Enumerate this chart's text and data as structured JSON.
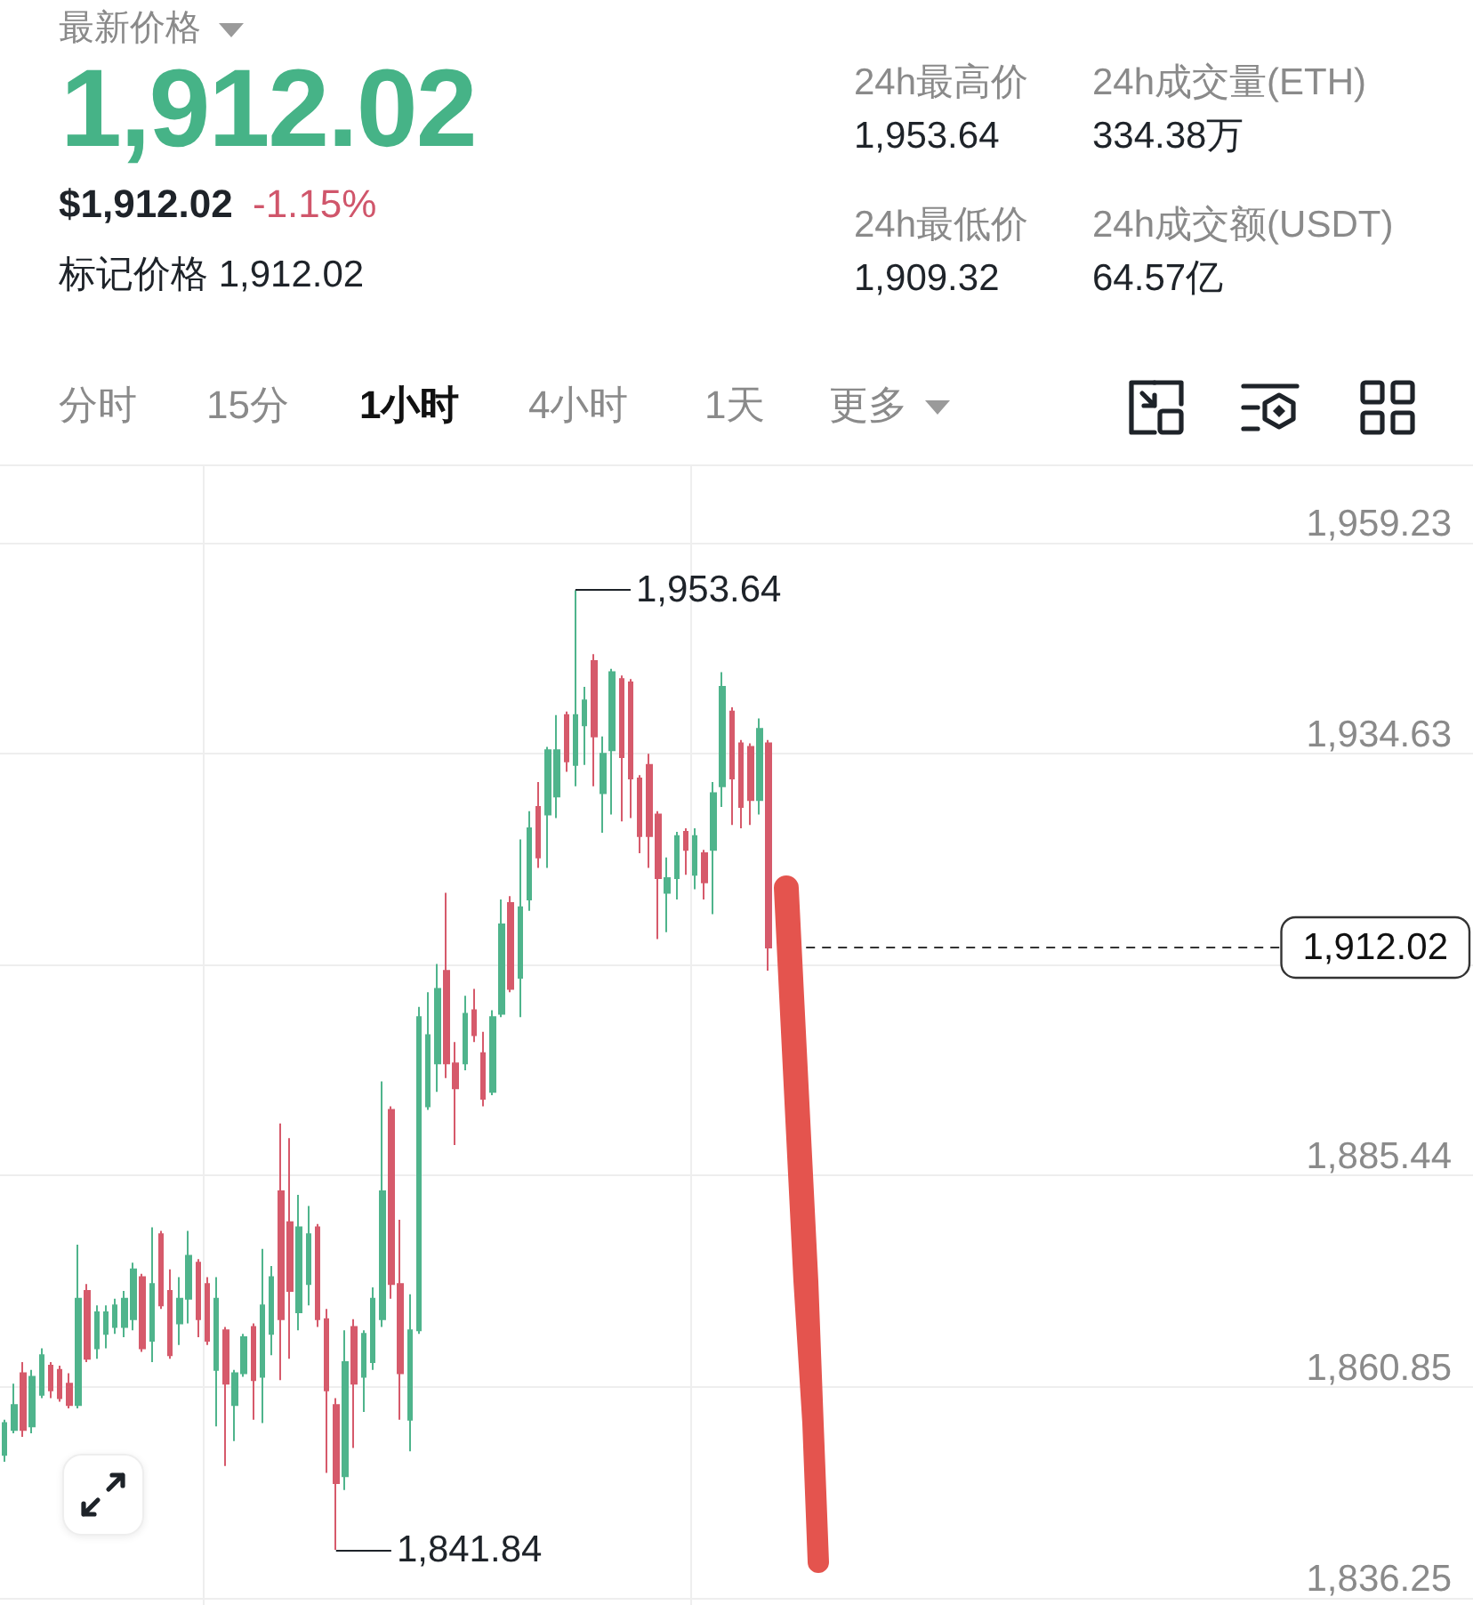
{
  "chart_data": [
    {
      "type": "other",
      "title": "最新价格",
      "annotations": [
        "1,912.02",
        "$1,912.02",
        "-1.15%",
        "标记价格 1,912.02",
        "24h最高价",
        "1,953.64",
        "24h成交量(ETH)",
        "334.38万",
        "24h最低价",
        "1,909.32",
        "24h成交额(USDT)",
        "64.57亿",
        "分时",
        "15分",
        "1小时",
        "4小时",
        "1天",
        "更多"
      ]
    },
    {
      "type": "candlestick",
      "categories": [
        null,
        null,
        null,
        null,
        null,
        null,
        null,
        null,
        null,
        null,
        null,
        null,
        null,
        null,
        null,
        null,
        null,
        null,
        null,
        null,
        null,
        null,
        null,
        null,
        null,
        null,
        null,
        null,
        null,
        null,
        null,
        null,
        null,
        null,
        null,
        null,
        null,
        null,
        null,
        null,
        null,
        null,
        null,
        null,
        null,
        null,
        null,
        null,
        null,
        null,
        null,
        null,
        null,
        null,
        null,
        null,
        null,
        null,
        null,
        null,
        null,
        null,
        null,
        null,
        null,
        null,
        null,
        null,
        null,
        null,
        null,
        null,
        null,
        null,
        null,
        null,
        null,
        null,
        null,
        null,
        null,
        null,
        null,
        null,
        null,
        null,
        null,
        null,
        null,
        null,
        null,
        null,
        null,
        null,
        null,
        null,
        null,
        null,
        null,
        null,
        null,
        null,
        null,
        null,
        null,
        null,
        null,
        null,
        null,
        null,
        null,
        null,
        null,
        null,
        null,
        null,
        null,
        null,
        null,
        null,
        null,
        null,
        null,
        null,
        null,
        null,
        null,
        null,
        null,
        null,
        null,
        null,
        null,
        null,
        null,
        null,
        null,
        null,
        null,
        null,
        null,
        null,
        null,
        null,
        null,
        null,
        null,
        null,
        null,
        null,
        null,
        null,
        null,
        null,
        null,
        null,
        null,
        null,
        null,
        null
      ],
      "ohlc": [
        [
          1852.9,
          1857.0,
          1852.1,
          1856.6
        ],
        [
          1855.8,
          1861.2,
          1855.4,
          1858.7
        ],
        [
          1862.4,
          1863.7,
          1855.0,
          1855.8
        ],
        [
          1856.2,
          1862.8,
          1855.4,
          1862.0
        ],
        [
          1859.9,
          1865.3,
          1859.5,
          1864.5
        ],
        [
          1863.3,
          1863.7,
          1859.5,
          1860.4
        ],
        [
          1862.8,
          1863.3,
          1859.1,
          1859.5
        ],
        [
          1861.2,
          1862.4,
          1858.3,
          1858.7
        ],
        [
          1858.7,
          1877.4,
          1858.3,
          1871.1
        ],
        [
          1872.0,
          1872.8,
          1863.7,
          1864.1
        ],
        [
          1865.3,
          1870.3,
          1864.1,
          1869.5
        ],
        [
          1867.0,
          1870.3,
          1865.3,
          1869.5
        ],
        [
          1867.8,
          1871.1,
          1867.0,
          1870.3
        ],
        [
          1867.8,
          1872.0,
          1866.6,
          1871.1
        ],
        [
          1868.7,
          1875.3,
          1867.4,
          1874.5
        ],
        [
          1873.6,
          1874.0,
          1864.9,
          1865.3
        ],
        [
          1866.2,
          1879.4,
          1863.7,
          1872.8
        ],
        [
          1878.6,
          1879.0,
          1869.9,
          1870.3
        ],
        [
          1872.0,
          1874.5,
          1864.1,
          1864.5
        ],
        [
          1868.2,
          1873.6,
          1865.7,
          1871.1
        ],
        [
          1871.1,
          1879.0,
          1868.2,
          1876.1
        ],
        [
          1875.3,
          1875.7,
          1866.6,
          1868.7
        ],
        [
          1872.8,
          1873.6,
          1865.7,
          1866.2
        ],
        [
          1862.8,
          1873.6,
          1856.2,
          1871.1
        ],
        [
          1867.4,
          1867.8,
          1851.6,
          1861.2
        ],
        [
          1858.7,
          1862.8,
          1854.5,
          1862.4
        ],
        [
          1862.4,
          1867.0,
          1862.0,
          1866.6
        ],
        [
          1867.8,
          1868.2,
          1857.0,
          1861.6
        ],
        [
          1862.0,
          1876.9,
          1856.6,
          1870.3
        ],
        [
          1867.0,
          1874.9,
          1864.5,
          1873.6
        ],
        [
          1883.6,
          1891.5,
          1861.6,
          1868.7
        ],
        [
          1880.0,
          1889.8,
          1864.1,
          1872.0
        ],
        [
          1869.5,
          1883.2,
          1867.4,
          1879.4
        ],
        [
          1872.8,
          1881.9,
          1870.3,
          1878.6
        ],
        [
          1879.4,
          1879.8,
          1867.8,
          1868.7
        ],
        [
          1868.7,
          1869.9,
          1850.8,
          1860.4
        ],
        [
          1858.7,
          1859.5,
          1841.84,
          1849.6
        ],
        [
          1850.4,
          1867.4,
          1848.8,
          1863.7
        ],
        [
          1867.8,
          1868.7,
          1853.7,
          1861.2
        ],
        [
          1862.0,
          1867.4,
          1857.9,
          1867.0
        ],
        [
          1863.7,
          1872.4,
          1862.8,
          1871.1
        ],
        [
          1868.7,
          1896.4,
          1867.8,
          1883.6
        ],
        [
          1893.1,
          1893.5,
          1871.1,
          1872.8
        ],
        [
          1872.8,
          1880.3,
          1857.0,
          1862.4
        ],
        [
          1857.0,
          1871.6,
          1853.3,
          1867.4
        ],
        [
          1867.4,
          1905.1,
          1867.0,
          1903.9
        ],
        [
          1893.5,
          1906.8,
          1893.1,
          1901.8
        ],
        [
          1898.5,
          1910.1,
          1895.2,
          1907.2
        ],
        [
          1909.3,
          1918.4,
          1896.8,
          1898.5
        ],
        [
          1898.5,
          1901.0,
          1889.0,
          1895.6
        ],
        [
          1898.5,
          1906.4,
          1897.7,
          1904.3
        ],
        [
          1904.7,
          1907.2,
          1901.0,
          1901.8
        ],
        [
          1899.7,
          1902.2,
          1893.5,
          1894.4
        ],
        [
          1895.2,
          1904.7,
          1894.8,
          1903.9
        ],
        [
          1904.3,
          1917.6,
          1903.9,
          1914.7
        ],
        [
          1917.2,
          1918.0,
          1906.8,
          1907.2
        ],
        [
          1908.5,
          1924.6,
          1903.9,
          1916.7
        ],
        [
          1917.6,
          1927.9,
          1916.3,
          1925.9
        ],
        [
          1928.4,
          1931.3,
          1921.3,
          1922.5
        ],
        [
          1927.5,
          1935.4,
          1921.3,
          1935.0
        ],
        [
          1929.6,
          1939.1,
          1927.1,
          1935.0
        ],
        [
          1939.1,
          1939.5,
          1932.5,
          1933.7
        ],
        [
          1933.3,
          1953.64,
          1930.8,
          1939.1
        ],
        [
          1937.9,
          1942.4,
          1933.3,
          1940.8
        ],
        [
          1945.4,
          1946.2,
          1930.8,
          1936.6
        ],
        [
          1930.0,
          1936.6,
          1925.4,
          1934.6
        ],
        [
          1935.0,
          1944.5,
          1927.5,
          1944.1
        ],
        [
          1943.3,
          1943.7,
          1926.7,
          1934.2
        ],
        [
          1942.9,
          1943.3,
          1927.1,
          1931.7
        ],
        [
          1931.7,
          1932.1,
          1923.0,
          1925.0
        ],
        [
          1933.3,
          1934.6,
          1921.3,
          1925.0
        ],
        [
          1927.5,
          1927.9,
          1913.0,
          1920.1
        ],
        [
          1918.4,
          1922.5,
          1913.8,
          1920.1
        ],
        [
          1920.1,
          1925.5,
          1917.6,
          1925.0
        ],
        [
          1925.5,
          1925.9,
          1920.5,
          1923.4
        ],
        [
          1920.5,
          1925.9,
          1918.8,
          1925.0
        ],
        [
          1923.0,
          1923.4,
          1917.6,
          1919.6
        ],
        [
          1923.4,
          1931.3,
          1915.9,
          1930.0
        ],
        [
          1930.8,
          1944.1,
          1928.4,
          1942.4
        ],
        [
          1939.5,
          1940.0,
          1926.3,
          1931.7
        ],
        [
          1935.8,
          1936.2,
          1925.9,
          1928.4
        ],
        [
          1935.4,
          1935.8,
          1926.3,
          1929.2
        ],
        [
          1929.2,
          1938.7,
          1927.5,
          1937.5
        ],
        [
          1935.8,
          1936.2,
          1909.32,
          1912.02
        ],
        null,
        null,
        null,
        null,
        null,
        null,
        null,
        null,
        null,
        null,
        null,
        null,
        null,
        null,
        null,
        null,
        null,
        null,
        null,
        null,
        null,
        null,
        null,
        null,
        null,
        null,
        null,
        null,
        null,
        null,
        null,
        null,
        null,
        null,
        null,
        null,
        null,
        null,
        null,
        null,
        null,
        null,
        null,
        null,
        null,
        null,
        null,
        null,
        null,
        null,
        null,
        null,
        null,
        null,
        null,
        null,
        null,
        null,
        null,
        null,
        null,
        null,
        null,
        null,
        null,
        null,
        null,
        null,
        null,
        null,
        null,
        null,
        null,
        null,
        null,
        null
      ],
      "colors": [
        "#4fb48c",
        "#4fb48c",
        "#d65a6b",
        "#4fb48c",
        "#4fb48c",
        "#d65a6b",
        "#d65a6b",
        "#d65a6b",
        "#4fb48c",
        "#d65a6b",
        "#4fb48c",
        "#4fb48c",
        "#4fb48c",
        "#4fb48c",
        "#4fb48c",
        "#d65a6b",
        "#4fb48c",
        "#d65a6b",
        "#d65a6b",
        "#4fb48c",
        "#4fb48c",
        "#d65a6b",
        "#d65a6b",
        "#4fb48c",
        "#d65a6b",
        "#4fb48c",
        "#4fb48c",
        "#d65a6b",
        "#4fb48c",
        "#4fb48c",
        "#d65a6b",
        "#d65a6b",
        "#4fb48c",
        "#4fb48c",
        "#d65a6b",
        "#d65a6b",
        "#d65a6b",
        "#4fb48c",
        "#d65a6b",
        "#4fb48c",
        "#4fb48c",
        "#4fb48c",
        "#d65a6b",
        "#d65a6b",
        "#4fb48c",
        "#4fb48c",
        "#4fb48c",
        "#4fb48c",
        "#d65a6b",
        "#d65a6b",
        "#4fb48c",
        "#d65a6b",
        "#d65a6b",
        "#4fb48c",
        "#4fb48c",
        "#d65a6b",
        "#4fb48c",
        "#4fb48c",
        "#d65a6b",
        "#4fb48c",
        "#4fb48c",
        "#d65a6b",
        "#4fb48c",
        "#4fb48c",
        "#d65a6b",
        "#4fb48c",
        "#4fb48c",
        "#d65a6b",
        "#d65a6b",
        "#d65a6b",
        "#d65a6b",
        "#d65a6b",
        "#4fb48c",
        "#4fb48c",
        "#d65a6b",
        "#4fb48c",
        "#d65a6b",
        "#4fb48c",
        "#4fb48c",
        "#d65a6b",
        "#d65a6b",
        "#d65a6b",
        "#4fb48c",
        "#d65a6b",
        null,
        null,
        null,
        null,
        null,
        null,
        null,
        null,
        null,
        null,
        null,
        null,
        null,
        null,
        null,
        null,
        null,
        null,
        null,
        null,
        null,
        null,
        null,
        null,
        null,
        null,
        null,
        null,
        null,
        null,
        null,
        null,
        null,
        null,
        null,
        null,
        null,
        null,
        null,
        null,
        null,
        null,
        null,
        null,
        null,
        null,
        null,
        null,
        null,
        null,
        null,
        null,
        null,
        null,
        null,
        null,
        null,
        null,
        null,
        null,
        null,
        null,
        null,
        null,
        null,
        null,
        null,
        null,
        null,
        null,
        null,
        null,
        null,
        null,
        null,
        null
      ],
      "ylim": [
        1835.4,
        1968.1
      ],
      "yticks": [
        {
          "value": 1836.25,
          "label": "1,836.25"
        },
        {
          "value": 1860.85,
          "label": "1,860.85"
        },
        {
          "value": 1885.44,
          "label": "1,885.44"
        },
        {
          "value": 1910.04,
          "label": null
        },
        {
          "value": 1934.63,
          "label": "1,934.63"
        },
        {
          "value": 1959.23,
          "label": "1,959.23"
        }
      ],
      "grid": true,
      "tick_labels": "y",
      "ref_lines": [
        {
          "axis": "y",
          "value": 1912.02,
          "label": "1,912.02",
          "line_style": "dashed",
          "color": "#333333"
        }
      ],
      "annotations": [
        "1,953.64",
        "1,841.84"
      ]
    }
  ]
}
